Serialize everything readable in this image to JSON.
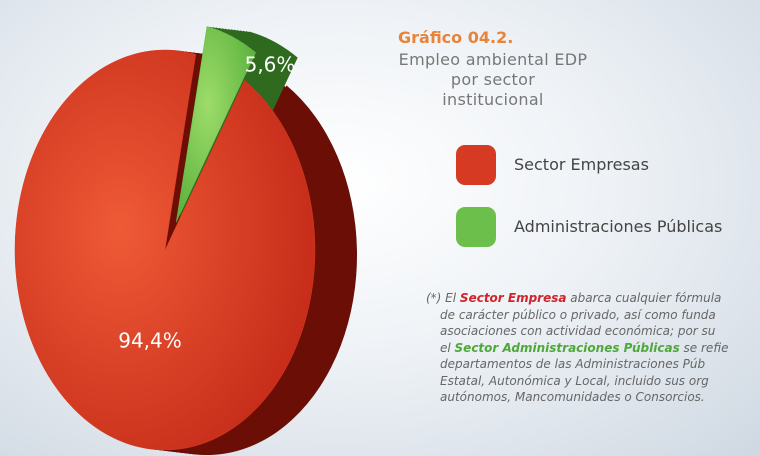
{
  "chart_data": {
    "type": "pie",
    "title": "Gráfico 04.2.",
    "subtitle": "Empleo ambiental EDP por sector institucional",
    "categories": [
      "Sector Empresas",
      "Administraciones Públicas"
    ],
    "values": [
      94.4,
      5.6
    ],
    "value_labels": [
      "94,4%",
      "5,6%"
    ],
    "colors": [
      "#d63a22",
      "#6cbf4a"
    ],
    "note": [
      [
        {
          "text": "(*) El "
        },
        {
          "text": "Sector Empresa",
          "color": "#d2232a"
        },
        {
          "text": " abarca cualquier fórmula"
        }
      ],
      [
        {
          "text": "de carácter público o privado, así como funda"
        }
      ],
      [
        {
          "text": "asociaciones con actividad económica; por su"
        }
      ],
      [
        {
          "text": "el "
        },
        {
          "text": "Sector Administraciones Públicas",
          "color": "#4fa83a"
        },
        {
          "text": " se refie"
        }
      ],
      [
        {
          "text": "departamentos de las Administraciones Púb"
        }
      ],
      [
        {
          "text": "Estatal, Autonómica y Local, incluido sus org"
        }
      ],
      [
        {
          "text": "autónomos, Mancomunidades o Consorcios."
        }
      ]
    ]
  }
}
